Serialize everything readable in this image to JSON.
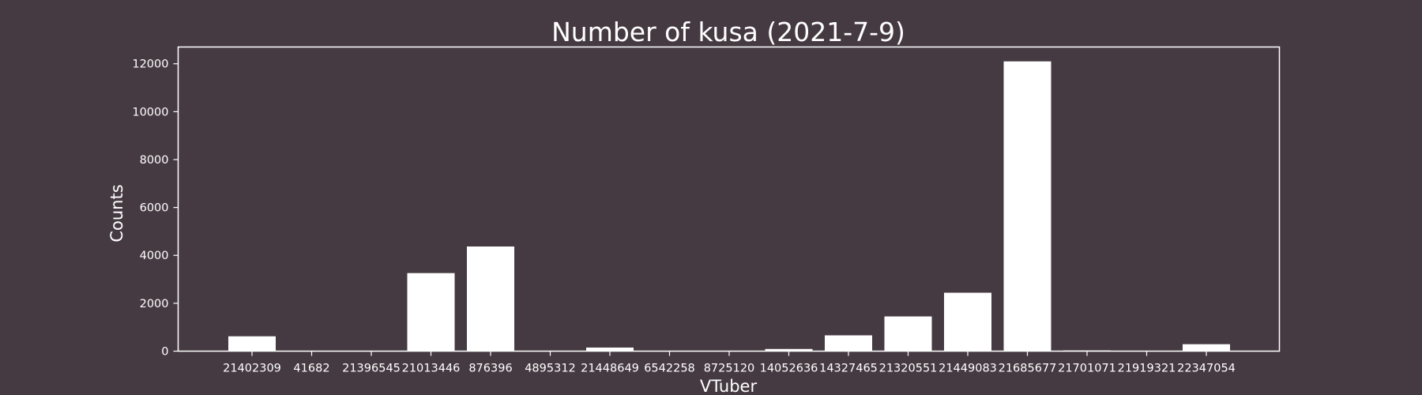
{
  "chart_data": {
    "type": "bar",
    "title": "Number of kusa (2021-7-9)",
    "xlabel": "VTuber",
    "ylabel": "Counts",
    "categories": [
      "21402309",
      "41682",
      "21396545",
      "21013446",
      "876396",
      "4895312",
      "21448649",
      "6542258",
      "8725120",
      "14052636",
      "14327465",
      "21320551",
      "21449083",
      "21685677",
      "21701071",
      "21919321",
      "22347054"
    ],
    "values": [
      620,
      5,
      8,
      3260,
      4370,
      5,
      150,
      5,
      5,
      90,
      660,
      1450,
      2440,
      12100,
      30,
      5,
      290
    ],
    "yticks": [
      0,
      2000,
      4000,
      6000,
      8000,
      10000,
      12000
    ],
    "ylim": [
      0,
      12700
    ],
    "grid": false,
    "colors": {
      "background": "#463a42",
      "bar": "#ffffff",
      "axis": "#ffffff",
      "text": "#ffffff"
    }
  }
}
